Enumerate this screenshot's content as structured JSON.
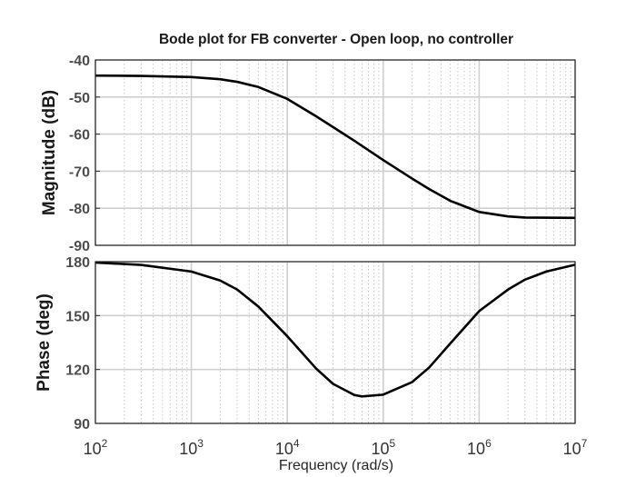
{
  "chart_data": {
    "type": "line",
    "title": "Bode plot for FB converter - Open loop, no controller",
    "xlabel": "Frequency  (rad/s)",
    "xscale": "log",
    "xlim": [
      100,
      10000000
    ],
    "x_ticks": [
      {
        "base": "10",
        "exp": "2"
      },
      {
        "base": "10",
        "exp": "3"
      },
      {
        "base": "10",
        "exp": "4"
      },
      {
        "base": "10",
        "exp": "5"
      },
      {
        "base": "10",
        "exp": "6"
      },
      {
        "base": "10",
        "exp": "7"
      }
    ],
    "grid": true,
    "minor_grid": true,
    "panels": [
      {
        "id": "magnitude",
        "ylabel": "Magnitude (dB)",
        "ylim": [
          -90,
          -40
        ],
        "yticks": [
          "-40",
          "-50",
          "-60",
          "-70",
          "-80",
          "-90"
        ],
        "series": [
          {
            "x": [
              100,
              300,
              1000,
              2000,
              3000,
              5000,
              10000,
              20000,
              30000,
              50000,
              100000,
              200000,
              300000,
              500000,
              1000000,
              2000000,
              3000000,
              10000000
            ],
            "y": [
              -44.2,
              -44.3,
              -44.6,
              -45.2,
              -45.9,
              -47.3,
              -50.5,
              -55.2,
              -58.1,
              -61.8,
              -67.0,
              -72.0,
              -74.8,
              -78.0,
              -81.0,
              -82.2,
              -82.5,
              -82.6
            ]
          }
        ]
      },
      {
        "id": "phase",
        "ylabel": "Phase (deg)",
        "ylim": [
          90,
          180
        ],
        "yticks": [
          "180",
          "150",
          "120",
          "90"
        ],
        "series": [
          {
            "x": [
              100,
              300,
              1000,
              2000,
              3000,
              5000,
              10000,
              20000,
              30000,
              50000,
              60000,
              100000,
              200000,
              300000,
              500000,
              1000000,
              2000000,
              3000000,
              5000000,
              10000000
            ],
            "y": [
              179.5,
              178.2,
              174.5,
              169.5,
              164.5,
              155.0,
              138.5,
              120.5,
              112.0,
              105.8,
              105.0,
              106.0,
              113.0,
              121.0,
              134.5,
              152.5,
              164.5,
              170.0,
              174.5,
              178.3
            ]
          }
        ]
      }
    ]
  },
  "colors": {
    "curve": "#000000",
    "axis": "#262626",
    "major_grid": "#cfcfcf",
    "minor_grid": "#c6c6c6"
  }
}
